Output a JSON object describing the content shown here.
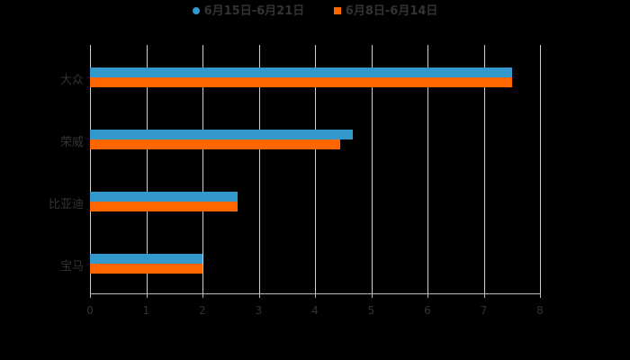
{
  "chart_data": {
    "type": "bar",
    "orientation": "horizontal",
    "title": "",
    "xlabel": "",
    "ylabel": "",
    "categories": [
      "大众",
      "荣威",
      "比亚迪",
      "宝马"
    ],
    "series": [
      {
        "name": "6月15日-6月21日",
        "color": "#3399cc",
        "values": [
          7.5,
          4.67,
          2.62,
          2.0
        ]
      },
      {
        "name": "6月8日-6月14日",
        "color": "#ff6600",
        "values": [
          7.5,
          4.45,
          2.62,
          2.0
        ]
      }
    ],
    "xlim": [
      0,
      8
    ],
    "xticks": [
      "0",
      "1",
      "2",
      "3",
      "4",
      "5",
      "6",
      "7",
      "8"
    ],
    "grid": true,
    "legend_position": "top"
  },
  "legend": {
    "items": [
      {
        "label": "6月15日-6月21日",
        "color": "#3399cc",
        "shape": "circle"
      },
      {
        "label": "6月8日-6月14日",
        "color": "#ff6600",
        "shape": "square"
      }
    ]
  }
}
